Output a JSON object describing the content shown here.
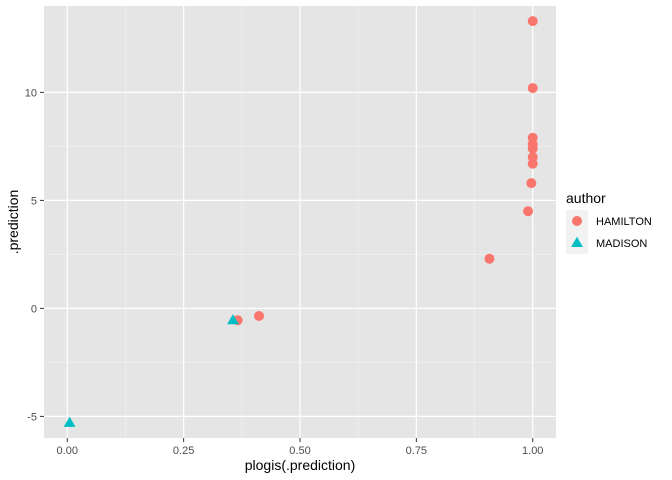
{
  "chart_data": {
    "type": "scatter",
    "xlabel": "plogis(.prediction)",
    "ylabel": ".prediction",
    "xlim": [
      -0.05,
      1.05
    ],
    "ylim": [
      -6.0,
      14.0
    ],
    "x_ticks": [
      0.0,
      0.25,
      0.5,
      0.75,
      1.0
    ],
    "x_tick_labels": [
      "0.00",
      "0.25",
      "0.50",
      "0.75",
      "1.00"
    ],
    "y_ticks": [
      -5,
      0,
      5,
      10
    ],
    "y_tick_labels": [
      "-5",
      "0",
      "5",
      "10"
    ],
    "grid": true,
    "background": "#e5e5e5",
    "legend": {
      "title": "author",
      "placement": "right",
      "entries": [
        {
          "label": "HAMILTON",
          "shape": "circle",
          "color": "#f8766d"
        },
        {
          "label": "MADISON",
          "shape": "triangle",
          "color": "#00bfc4"
        }
      ]
    },
    "series": [
      {
        "name": "HAMILTON",
        "shape": "circle",
        "color": "#f8766d",
        "points": [
          {
            "x": 1.0,
            "y": 13.3
          },
          {
            "x": 1.0,
            "y": 10.2
          },
          {
            "x": 1.0,
            "y": 7.9
          },
          {
            "x": 1.0,
            "y": 7.6
          },
          {
            "x": 1.0,
            "y": 7.4
          },
          {
            "x": 1.0,
            "y": 7.0
          },
          {
            "x": 1.0,
            "y": 6.7
          },
          {
            "x": 0.997,
            "y": 5.8
          },
          {
            "x": 0.99,
            "y": 4.5
          },
          {
            "x": 0.907,
            "y": 2.3
          },
          {
            "x": 0.412,
            "y": -0.35
          },
          {
            "x": 0.366,
            "y": -0.55
          }
        ]
      },
      {
        "name": "MADISON",
        "shape": "triangle",
        "color": "#00bfc4",
        "points": [
          {
            "x": 0.356,
            "y": -0.55
          },
          {
            "x": 0.005,
            "y": -5.3
          }
        ]
      }
    ]
  }
}
